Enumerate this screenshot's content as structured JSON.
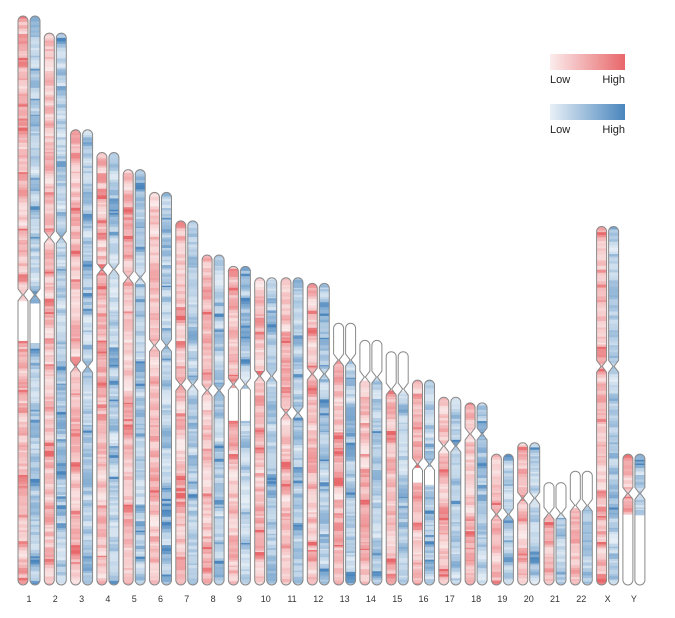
{
  "chart_data": {
    "type": "heatmap",
    "title": "",
    "xlabel": "",
    "ylabel": "",
    "categories": [
      "1",
      "2",
      "3",
      "4",
      "5",
      "6",
      "7",
      "8",
      "9",
      "10",
      "11",
      "12",
      "13",
      "14",
      "15",
      "16",
      "17",
      "18",
      "19",
      "20",
      "21",
      "22",
      "X",
      "Y"
    ],
    "relative_length": [
      1.0,
      0.97,
      0.8,
      0.76,
      0.73,
      0.69,
      0.64,
      0.58,
      0.56,
      0.54,
      0.54,
      0.53,
      0.46,
      0.43,
      0.41,
      0.36,
      0.33,
      0.32,
      0.23,
      0.25,
      0.18,
      0.2,
      0.63,
      0.23
    ],
    "centromere_fraction": [
      0.49,
      0.37,
      0.52,
      0.27,
      0.26,
      0.39,
      0.45,
      0.41,
      0.37,
      0.32,
      0.44,
      0.3,
      0.14,
      0.15,
      0.16,
      0.41,
      0.26,
      0.17,
      0.46,
      0.39,
      0.3,
      0.3,
      0.39,
      0.3
    ],
    "no_data_regions": [
      {
        "chromosome": "1",
        "start_fraction": 0.5,
        "end_fraction": 0.57
      },
      {
        "chromosome": "9",
        "start_fraction": 0.38,
        "end_fraction": 0.48
      },
      {
        "chromosome": "13",
        "start_fraction": 0.0,
        "end_fraction": 0.14
      },
      {
        "chromosome": "14",
        "start_fraction": 0.0,
        "end_fraction": 0.15
      },
      {
        "chromosome": "15",
        "start_fraction": 0.0,
        "end_fraction": 0.16
      },
      {
        "chromosome": "16",
        "start_fraction": 0.42,
        "end_fraction": 0.5
      },
      {
        "chromosome": "21",
        "start_fraction": 0.0,
        "end_fraction": 0.3
      },
      {
        "chromosome": "22",
        "start_fraction": 0.0,
        "end_fraction": 0.3
      },
      {
        "chromosome": "Y",
        "start_fraction": 0.45,
        "end_fraction": 1.0
      }
    ],
    "series": [
      {
        "color_low": "#fbecec",
        "color_high": "#e8676a"
      },
      {
        "color_low": "#e8f0f7",
        "color_high": "#4a86bd"
      }
    ],
    "legend": {
      "position": "top-right",
      "entries": [
        {
          "low_label": "Low",
          "high_label": "High"
        },
        {
          "low_label": "Low",
          "high_label": "High"
        }
      ]
    },
    "grid": false
  }
}
